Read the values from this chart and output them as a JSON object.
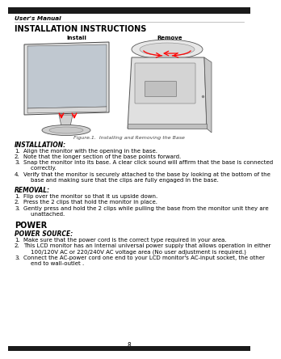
{
  "page_num": "8",
  "header_text": "User's Manual",
  "title": "INSTALLATION INSTRUCTIONS",
  "install_label": "Install",
  "remove_label": "Remove",
  "figure_caption": "Figure.1.  Installing and Removing the Base",
  "section1_title": "INSTALLATION:",
  "installation_steps": [
    "Align the monitor with the opening in the base.",
    "Note that the longer section of the base points forward.",
    "Snap the monitor into its base. A clear click sound will affirm that the base is connected\n    correctly.",
    "Verify that the monitor is securely attached to the base by looking at the bottom of the\n    base and making sure that the clips are fully engaged in the base."
  ],
  "section2_title": "REMOVAL:",
  "removal_steps": [
    "Flip over the monitor so that it us upside down.",
    "Press the 2 clips that hold the monitor in place.",
    "Gently press and hold the 2 clips while pulling the base from the monitor unit they are\n    unattached."
  ],
  "section3_title": "POWER",
  "section4_title": "POWER SOURCE:",
  "power_steps": [
    "Make sure that the power cord is the correct type required in your area.",
    "This LCD monitor has an Internal universal power supply that allows operation in either\n    100/120V AC or 220/240V AC voltage area (No user adjustment is required.)",
    "Connect the AC-power cord one end to your LCD monitor's AC-input socket, the other\n    end to wall-outlet ."
  ],
  "bg_color": "#ffffff",
  "text_color": "#000000",
  "header_line_color": "#aaaaaa",
  "top_bg": "#1a1a1a",
  "bottom_bg": "#1a1a1a"
}
